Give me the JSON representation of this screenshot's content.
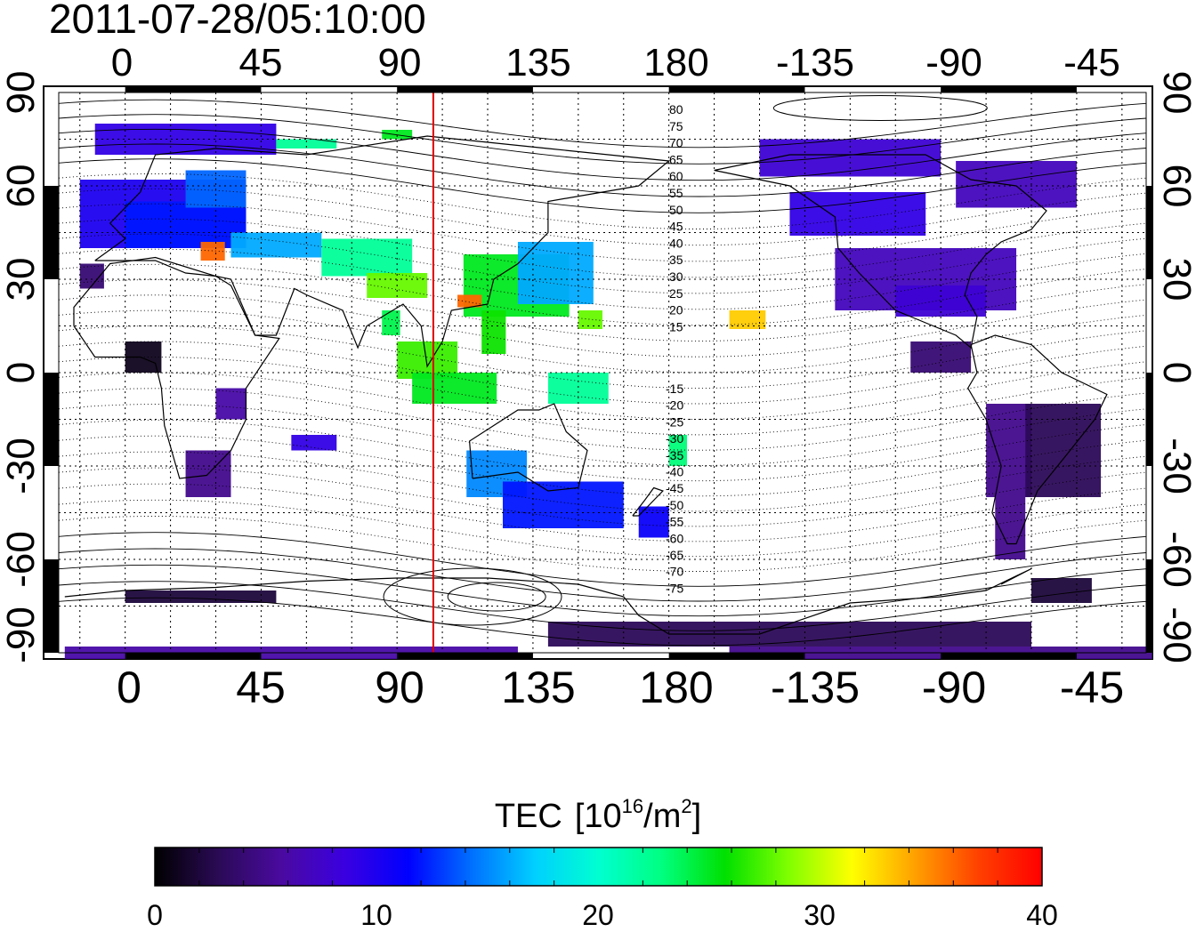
{
  "title": "2011-07-28/05:10:00",
  "top_lon_labels": [
    "0",
    "45",
    "90",
    "135",
    "180",
    "-135",
    "-90",
    "-45"
  ],
  "bottom_lon_labels": [
    "0",
    "45",
    "90",
    "135",
    "180",
    "-135",
    "-90",
    "-45"
  ],
  "lat_labels": [
    "90",
    "60",
    "30",
    "0",
    "-30",
    "-60",
    "-90"
  ],
  "colorbar": {
    "label_main": "TEC",
    "label_unit_pre": "[10",
    "label_unit_sup1": "16",
    "label_unit_mid": "/m",
    "label_unit_sup2": "2",
    "label_unit_post": "]",
    "ticks": [
      "0",
      "10",
      "20",
      "30",
      "40"
    ],
    "min": 0,
    "max": 40,
    "colors": [
      "#000000",
      "#2a0a55",
      "#4a0aa0",
      "#3a00e0",
      "#0000ff",
      "#0070ff",
      "#00d0ff",
      "#00ffd0",
      "#00ff80",
      "#00e000",
      "#80ff00",
      "#ffff00",
      "#ffa000",
      "#ff4000",
      "#ff0000"
    ]
  },
  "contour_labels_north": [
    "80",
    "75",
    "70",
    "65",
    "60",
    "55",
    "50",
    "45",
    "40",
    "35",
    "30",
    "25",
    "20",
    "15"
  ],
  "contour_labels_south": [
    "-15",
    "-20",
    "-25",
    "-30",
    "-35",
    "-40",
    "-45",
    "-50",
    "-55",
    "-60",
    "-65",
    "-70",
    "-75"
  ],
  "marker_longitude": 102,
  "marker_color": "#e00000",
  "map": {
    "lon_min": -22,
    "lon_max": 338,
    "lat_min": -90,
    "lat_max": 90,
    "tec_patches": [
      {
        "lon": -10,
        "lat": 80,
        "w": 60,
        "h": 10,
        "tec": 9
      },
      {
        "lon": -15,
        "lat": 62,
        "w": 55,
        "h": 22,
        "tec": 10
      },
      {
        "lon": 0,
        "lat": 55,
        "w": 40,
        "h": 15,
        "tec": 12
      },
      {
        "lon": 20,
        "lat": 65,
        "w": 20,
        "h": 12,
        "tec": 14
      },
      {
        "lon": 25,
        "lat": 42,
        "w": 8,
        "h": 6,
        "tec": 36
      },
      {
        "lon": -15,
        "lat": 35,
        "w": 8,
        "h": 8,
        "tec": 4
      },
      {
        "lon": 35,
        "lat": 45,
        "w": 30,
        "h": 8,
        "tec": 16
      },
      {
        "lon": 65,
        "lat": 43,
        "w": 30,
        "h": 12,
        "tec": 22
      },
      {
        "lon": 80,
        "lat": 32,
        "w": 20,
        "h": 8,
        "tec": 28
      },
      {
        "lon": 112,
        "lat": 38,
        "w": 35,
        "h": 20,
        "tec": 25
      },
      {
        "lon": 130,
        "lat": 42,
        "w": 25,
        "h": 20,
        "tec": 16
      },
      {
        "lon": 85,
        "lat": 20,
        "w": 6,
        "h": 8,
        "tec": 24
      },
      {
        "lon": 90,
        "lat": 10,
        "w": 20,
        "h": 12,
        "tec": 27
      },
      {
        "lon": 95,
        "lat": 0,
        "w": 28,
        "h": 10,
        "tec": 25
      },
      {
        "lon": 118,
        "lat": 20,
        "w": 8,
        "h": 14,
        "tec": 26
      },
      {
        "lon": 110,
        "lat": 25,
        "w": 8,
        "h": 4,
        "tec": 36
      },
      {
        "lon": 140,
        "lat": 0,
        "w": 20,
        "h": 10,
        "tec": 22
      },
      {
        "lon": 150,
        "lat": 20,
        "w": 8,
        "h": 6,
        "tec": 28
      },
      {
        "lon": 113,
        "lat": -25,
        "w": 20,
        "h": 15,
        "tec": 15
      },
      {
        "lon": 125,
        "lat": -35,
        "w": 40,
        "h": 15,
        "tec": 12
      },
      {
        "lon": 170,
        "lat": -43,
        "w": 10,
        "h": 10,
        "tec": 11
      },
      {
        "lon": 180,
        "lat": -20,
        "w": 6,
        "h": 10,
        "tec": 23
      },
      {
        "lon": 200,
        "lat": 20,
        "w": 12,
        "h": 6,
        "tec": 33
      },
      {
        "lon": -140,
        "lat": 58,
        "w": 45,
        "h": 14,
        "tec": 9
      },
      {
        "lon": -125,
        "lat": 40,
        "w": 60,
        "h": 20,
        "tec": 7
      },
      {
        "lon": -105,
        "lat": 28,
        "w": 30,
        "h": 10,
        "tec": 8
      },
      {
        "lon": -150,
        "lat": 75,
        "w": 60,
        "h": 12,
        "tec": 8
      },
      {
        "lon": -85,
        "lat": 68,
        "w": 40,
        "h": 15,
        "tec": 7
      },
      {
        "lon": -100,
        "lat": 10,
        "w": 20,
        "h": 10,
        "tec": 4
      },
      {
        "lon": -75,
        "lat": -10,
        "w": 15,
        "h": 30,
        "tec": 5
      },
      {
        "lon": -62,
        "lat": -10,
        "w": 25,
        "h": 30,
        "tec": 3
      },
      {
        "lon": -72,
        "lat": -40,
        "w": 10,
        "h": 20,
        "tec": 5
      },
      {
        "lon": 20,
        "lat": -25,
        "w": 15,
        "h": 15,
        "tec": 5
      },
      {
        "lon": 30,
        "lat": -5,
        "w": 10,
        "h": 10,
        "tec": 6
      },
      {
        "lon": 0,
        "lat": 10,
        "w": 12,
        "h": 10,
        "tec": 1
      },
      {
        "lon": 55,
        "lat": -20,
        "w": 15,
        "h": 5,
        "tec": 9
      },
      {
        "lon": 140,
        "lat": -80,
        "w": 160,
        "h": 8,
        "tec": 3
      },
      {
        "lon": 200,
        "lat": -88,
        "w": 140,
        "h": 4,
        "tec": 5
      },
      {
        "lon": -20,
        "lat": -88,
        "w": 150,
        "h": 4,
        "tec": 6
      },
      {
        "lon": 0,
        "lat": -70,
        "w": 50,
        "h": 4,
        "tec": 2
      },
      {
        "lon": -60,
        "lat": -66,
        "w": 20,
        "h": 8,
        "tec": 2
      },
      {
        "lon": 50,
        "lat": 75,
        "w": 20,
        "h": 3,
        "tec": 22
      },
      {
        "lon": 85,
        "lat": 78,
        "w": 10,
        "h": 3,
        "tec": 25
      }
    ]
  }
}
